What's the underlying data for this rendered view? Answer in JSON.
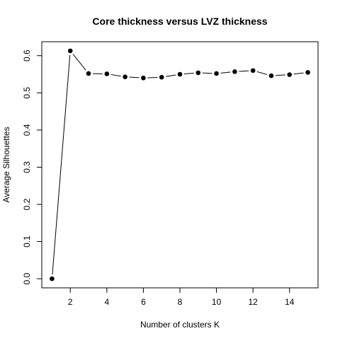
{
  "chart_data": {
    "type": "line",
    "title": "Core thickness versus LVZ thickness",
    "xlabel": "Number of clusters K",
    "ylabel": "Average Silhouettes",
    "x": [
      1,
      2,
      3,
      4,
      5,
      6,
      7,
      8,
      9,
      10,
      11,
      12,
      13,
      14,
      15
    ],
    "series": [
      {
        "values": [
          0.0,
          0.613,
          0.552,
          0.551,
          0.543,
          0.54,
          0.542,
          0.55,
          0.554,
          0.552,
          0.557,
          0.56,
          0.546,
          0.549,
          0.555
        ]
      }
    ],
    "xlim": [
      0.44,
      15.56
    ],
    "ylim": [
      -0.0245,
      0.6375
    ],
    "x_ticks": [
      2,
      4,
      6,
      8,
      10,
      12,
      14
    ],
    "x_tick_labels": [
      "2",
      "4",
      "6",
      "8",
      "10",
      "12",
      "14"
    ],
    "y_ticks": [
      0.0,
      0.1,
      0.2,
      0.3,
      0.4,
      0.5,
      0.6
    ],
    "y_tick_labels": [
      "0.0",
      "0.1",
      "0.2",
      "0.3",
      "0.4",
      "0.5",
      "0.6"
    ],
    "grid": false,
    "legend": "none",
    "line_color": "#000000",
    "point_color": "#000000"
  }
}
